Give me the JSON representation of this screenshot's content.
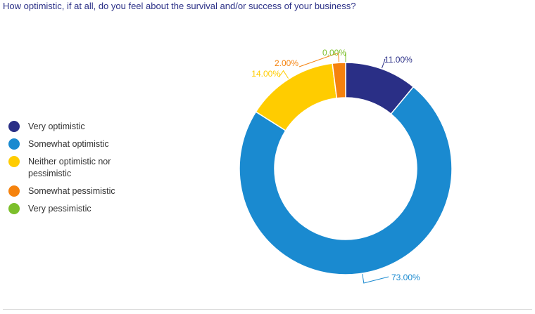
{
  "chart_data": {
    "type": "pie",
    "subtype": "donut",
    "title": "How optimistic, if at all, do you feel about the survival and/or success of your business?",
    "legend_position": "left",
    "slices": [
      {
        "label": "Very optimistic",
        "value": 11.0,
        "display": "11.00%",
        "color": "#2a2f86"
      },
      {
        "label": "Somewhat optimistic",
        "value": 73.0,
        "display": "73.00%",
        "color": "#1a8ad0"
      },
      {
        "label": "Neither optimistic nor pessimistic",
        "value": 14.0,
        "display": "14.00%",
        "color": "#ffcc00"
      },
      {
        "label": "Somewhat pessimistic",
        "value": 2.0,
        "display": "2.00%",
        "color": "#f5820d"
      },
      {
        "label": "Very pessimistic",
        "value": 0.0,
        "display": "0.00%",
        "color": "#7cbf2b"
      }
    ]
  }
}
